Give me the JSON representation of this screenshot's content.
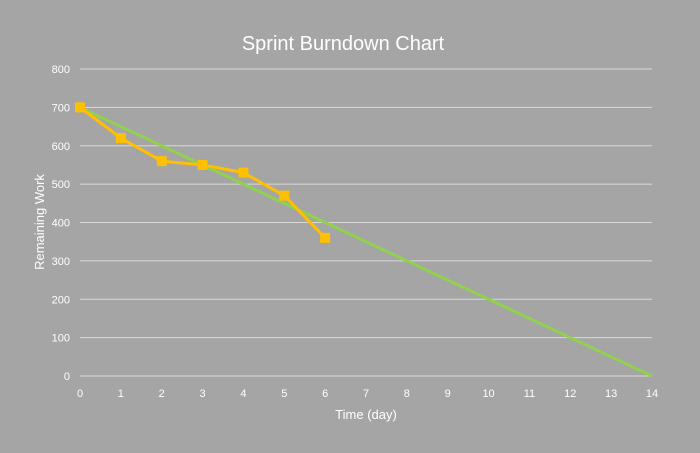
{
  "chart_data": {
    "type": "line",
    "title": "Sprint Burndown Chart",
    "xlabel": "Time (day)",
    "ylabel": "Remaining Work",
    "xlim": [
      0,
      14
    ],
    "ylim": [
      0,
      800
    ],
    "x_ticks": [
      0,
      1,
      2,
      3,
      4,
      5,
      6,
      7,
      8,
      9,
      10,
      11,
      12,
      13,
      14
    ],
    "y_ticks": [
      0,
      100,
      200,
      300,
      400,
      500,
      600,
      700,
      800
    ],
    "grid": "horizontal",
    "legend": "none",
    "series": [
      {
        "color": "#92d050",
        "marker": "none",
        "x": [
          0,
          14
        ],
        "y": [
          700,
          0
        ]
      },
      {
        "color": "#ffc000",
        "marker": "square",
        "x": [
          0,
          1,
          2,
          3,
          4,
          5,
          6
        ],
        "y": [
          700,
          620,
          560,
          550,
          530,
          470,
          360
        ]
      }
    ]
  }
}
